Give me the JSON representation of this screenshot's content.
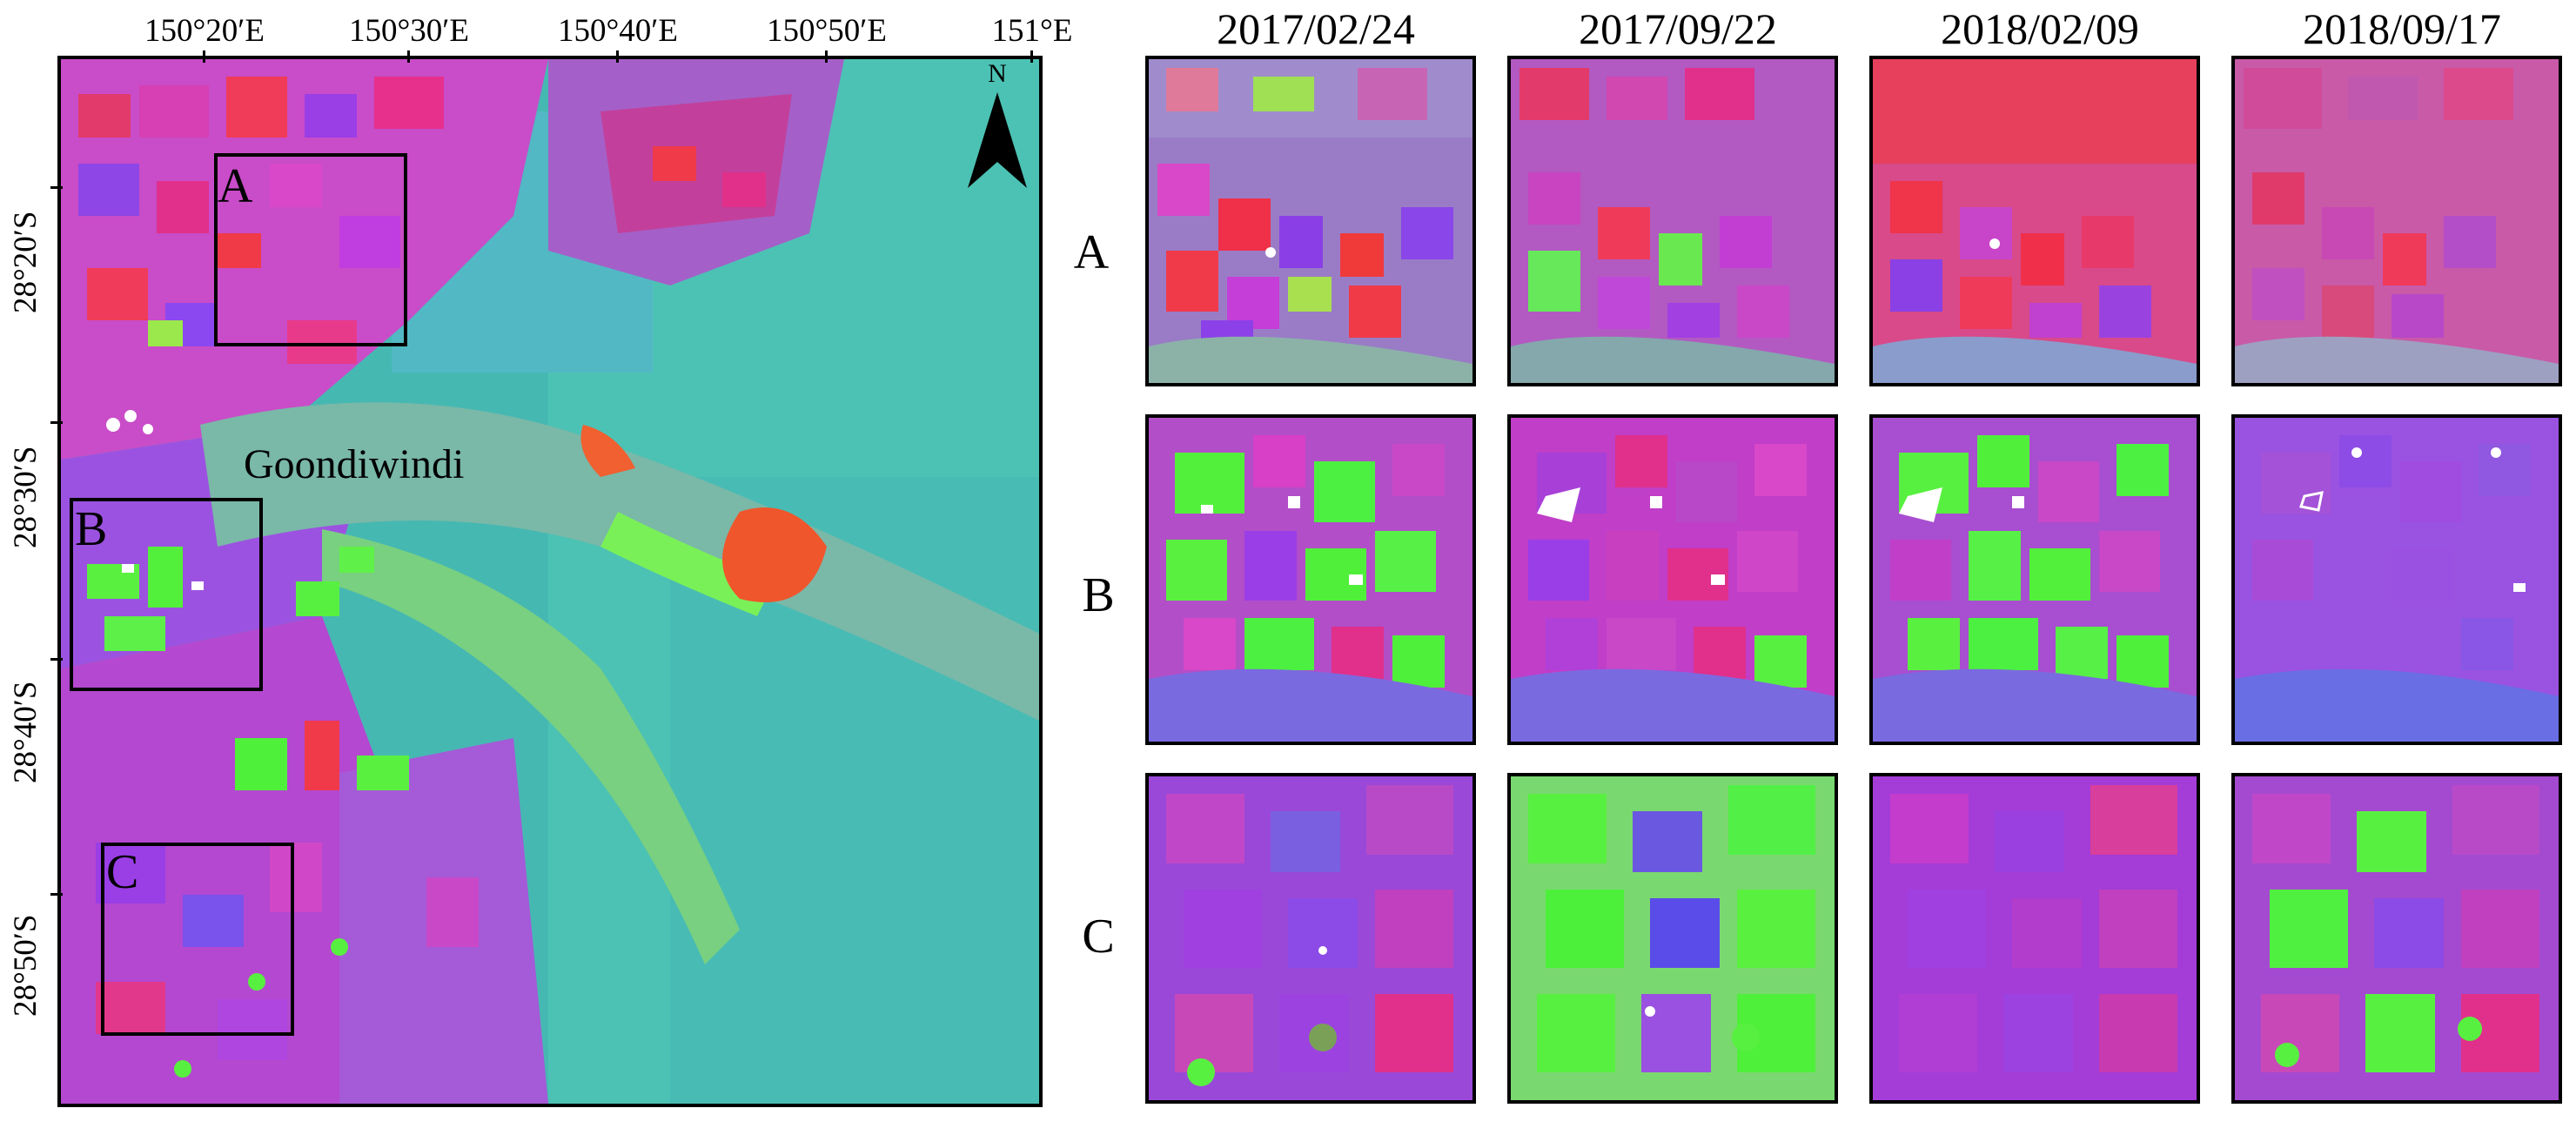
{
  "overview_map": {
    "lon_ticks": [
      "150°20′E",
      "150°30′E",
      "150°40′E",
      "150°50′E",
      "151°E"
    ],
    "lat_ticks": [
      "28°20′S",
      "28°30′S",
      "28°40′S",
      "28°50′S"
    ],
    "north_label": "N",
    "town_label": "Goondiwindi",
    "regions": [
      "A",
      "B",
      "C"
    ]
  },
  "dates": [
    "2017/02/24",
    "2017/09/22",
    "2018/02/09",
    "2018/09/17"
  ],
  "rows": [
    "A",
    "B",
    "C"
  ],
  "colors": {
    "background": "#48c0b0",
    "magenta": "#d83ec0",
    "purple": "#8a3ee8",
    "red": "#f0304a",
    "green": "#50f040",
    "blue": "#5a6cf0",
    "field_white": "#ffffff"
  }
}
